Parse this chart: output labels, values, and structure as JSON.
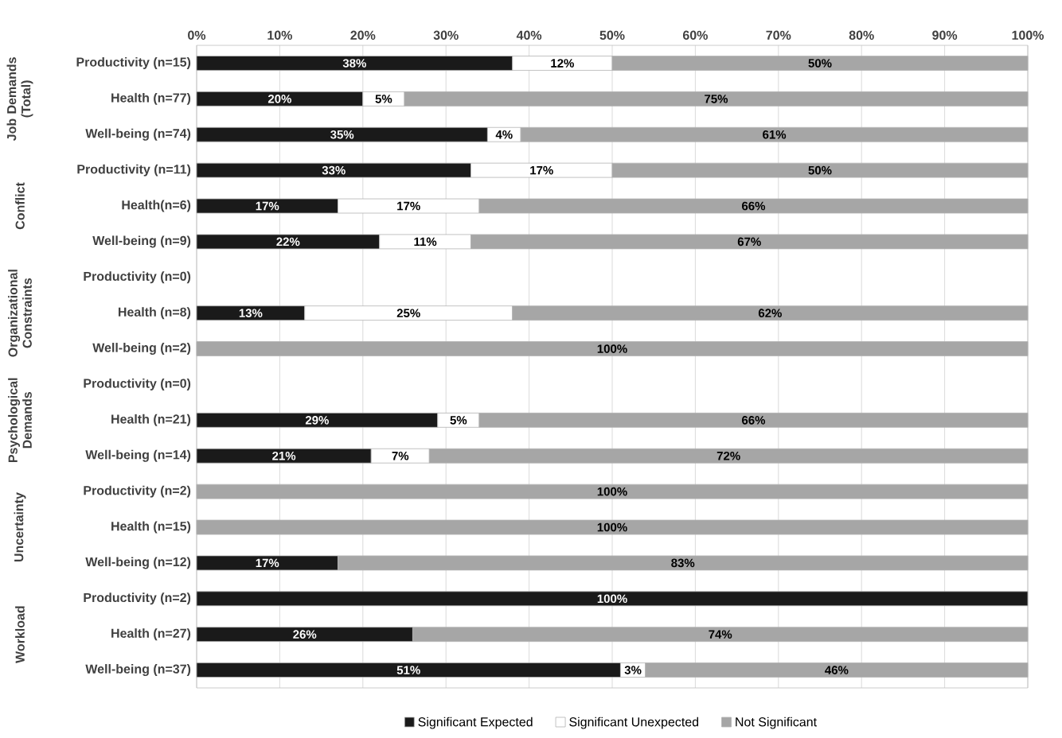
{
  "chart_data": {
    "type": "bar",
    "orientation": "horizontal",
    "stacked": true,
    "categories": [
      "Productivity (n=15)",
      "Health (n=77)",
      "Well-being (n=74)",
      "Productivity (n=11)",
      "Health(n=6)",
      "Well-being (n=9)",
      "Productivity (n=0)",
      "Health (n=8)",
      "Well-being (n=2)",
      "Productivity (n=0)",
      "Health (n=21)",
      "Well-being (n=14)",
      "Productivity (n=2)",
      "Health (n=15)",
      "Well-being (n=12)",
      "Productivity (n=2)",
      "Health (n=27)",
      "Well-being (n=37)"
    ],
    "series": [
      {
        "name": "Significant Expected",
        "color": "#1a1a1a",
        "values": [
          38,
          20,
          35,
          33,
          17,
          22,
          null,
          13,
          0,
          null,
          29,
          21,
          0,
          0,
          17,
          100,
          26,
          51
        ],
        "value_labels": [
          "38%",
          "20%",
          "35%",
          "33%",
          "17%",
          "22%",
          null,
          "13%",
          null,
          null,
          "29%",
          "21%",
          null,
          null,
          "17%",
          "100%",
          "26%",
          "51%"
        ]
      },
      {
        "name": "Significant Unexpected",
        "color": "#ffffff",
        "values": [
          12,
          5,
          4,
          17,
          17,
          11,
          null,
          25,
          0,
          null,
          5,
          7,
          0,
          0,
          0,
          0,
          0,
          3
        ],
        "value_labels": [
          "12%",
          "5%",
          "4%",
          "17%",
          "17%",
          "11%",
          null,
          "25%",
          null,
          null,
          "5%",
          "7%",
          null,
          null,
          null,
          null,
          null,
          "3%"
        ]
      },
      {
        "name": "Not Significant",
        "color": "#a6a6a6",
        "values": [
          50,
          75,
          61,
          50,
          66,
          67,
          null,
          62,
          100,
          null,
          66,
          72,
          100,
          100,
          83,
          0,
          74,
          46
        ],
        "value_labels": [
          "50%",
          "75%",
          "61%",
          "50%",
          "66%",
          "67%",
          null,
          "62%",
          "100%",
          null,
          "66%",
          "72%",
          "100%",
          "100%",
          "83%",
          null,
          "74%",
          "46%"
        ]
      }
    ],
    "xlim": [
      0,
      100
    ],
    "xticks": [
      {
        "value": 0,
        "label": "0%"
      },
      {
        "value": 10,
        "label": "10%"
      },
      {
        "value": 20,
        "label": "20%"
      },
      {
        "value": 30,
        "label": "30%"
      },
      {
        "value": 40,
        "label": "40%"
      },
      {
        "value": 50,
        "label": "50%"
      },
      {
        "value": 60,
        "label": "60%"
      },
      {
        "value": 70,
        "label": "70%"
      },
      {
        "value": 80,
        "label": "80%"
      },
      {
        "value": 90,
        "label": "90%"
      },
      {
        "value": 100,
        "label": "100%"
      }
    ],
    "grid": "x",
    "legend": "bottom",
    "annotations": [
      "Job Demands (Total)",
      "Conflict",
      "Organizational Constraints",
      "Psychological Demands",
      "Uncertainty",
      "Workload"
    ]
  }
}
